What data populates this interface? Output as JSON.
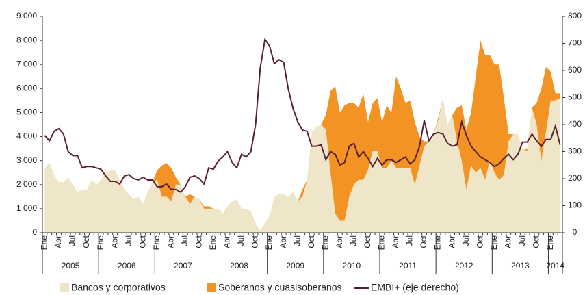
{
  "chart_data": {
    "type": "area",
    "categories": [
      "Ene",
      null,
      null,
      "Abr",
      null,
      null,
      "Jul",
      null,
      null,
      "Oct",
      null,
      null,
      "Ene",
      null,
      null,
      "Abr",
      null,
      null,
      "Jul",
      null,
      null,
      "Oct",
      null,
      null,
      "Ene",
      null,
      null,
      "Abr",
      null,
      null,
      "Jul",
      null,
      null,
      "Oct",
      null,
      null,
      "Ene",
      null,
      null,
      "Abr",
      null,
      null,
      "Jul",
      null,
      null,
      "Oct",
      null,
      null,
      "Ene",
      null,
      null,
      "Abr",
      null,
      null,
      "Jul",
      null,
      null,
      "Oct",
      null,
      null,
      "Ene",
      null,
      null,
      "Abr",
      null,
      null,
      "Jul",
      null,
      null,
      "Oct",
      null,
      null,
      "Ene",
      null,
      null,
      "Abr",
      null,
      null,
      "Jul",
      null,
      null,
      "Oct",
      null,
      null,
      "Ene",
      null,
      null,
      "Abr",
      null,
      null,
      "Jul",
      null,
      null,
      "Oct",
      null,
      null,
      "Ene",
      null,
      null,
      "Abr",
      null,
      null,
      "Jul",
      null,
      null,
      "Oct",
      null,
      null,
      "Ene",
      null,
      null
    ],
    "years": [
      "2005",
      "2006",
      "2007",
      "2008",
      "2009",
      "2010",
      "2011",
      "2012",
      "2013",
      "2014"
    ],
    "series": [
      {
        "name": "Bancos y corporativos",
        "color": "#efe6c9",
        "stacked": true,
        "values": [
          2700,
          2900,
          2400,
          2100,
          2100,
          2300,
          2000,
          1700,
          1800,
          1800,
          2200,
          2000,
          2200,
          2500,
          2600,
          2600,
          2200,
          1800,
          1600,
          1400,
          1500,
          1200,
          1700,
          2100,
          2200,
          1500,
          1500,
          1300,
          2000,
          2000,
          1500,
          1200,
          1500,
          1400,
          1000,
          1000,
          1000,
          1000,
          800,
          1100,
          1300,
          1400,
          1000,
          1000,
          900,
          400,
          100,
          400,
          700,
          1500,
          1600,
          1600,
          1500,
          1700,
          1300,
          1500,
          2200,
          4200,
          4400,
          4500,
          4300,
          2500,
          800,
          500,
          500,
          1500,
          2000,
          2200,
          2200,
          2600,
          3400,
          3400,
          2700,
          2700,
          3000,
          2700,
          2700,
          2700,
          2700,
          2000,
          2800,
          3600,
          3800,
          4100,
          4700,
          5600,
          4500,
          4900,
          3800,
          3000,
          1800,
          2800,
          2500,
          2700,
          2200,
          3000,
          2500,
          2200,
          2400,
          3800,
          4100,
          4100,
          3500,
          3400,
          5200,
          4500,
          3000,
          4200,
          5500,
          5500,
          5600
        ]
      },
      {
        "name": "Soberanos y cuasisoberanos",
        "color": "#f39323",
        "stacked": true,
        "values": [
          0,
          0,
          0,
          0,
          0,
          0,
          0,
          0,
          0,
          0,
          0,
          0,
          0,
          0,
          0,
          0,
          0,
          0,
          0,
          0,
          0,
          0,
          0,
          0,
          400,
          1300,
          1400,
          1400,
          300,
          0,
          0,
          400,
          0,
          0,
          100,
          100,
          0,
          0,
          0,
          0,
          0,
          0,
          0,
          0,
          0,
          0,
          0,
          0,
          0,
          0,
          0,
          0,
          0,
          0,
          0,
          300,
          0,
          0,
          0,
          0,
          600,
          3400,
          5300,
          4500,
          4800,
          3900,
          3400,
          3000,
          3600,
          2000,
          2000,
          2200,
          1900,
          2600,
          2000,
          3800,
          3300,
          2700,
          2800,
          2600,
          1200,
          200,
          0,
          0,
          100,
          0,
          0,
          0,
          1400,
          2300,
          2500,
          2200,
          4000,
          5300,
          5200,
          4400,
          4500,
          4800,
          3200,
          300,
          0,
          0,
          0,
          100,
          0,
          900,
          3000,
          2700,
          1200,
          300,
          200
        ]
      },
      {
        "name": "EMBI+ (eje derecho)",
        "color": "#5a1f2e",
        "type": "line",
        "axis": "y2",
        "values": [
          360,
          340,
          375,
          385,
          365,
          300,
          285,
          285,
          240,
          245,
          245,
          240,
          235,
          210,
          190,
          190,
          180,
          210,
          215,
          200,
          195,
          205,
          195,
          195,
          170,
          170,
          180,
          160,
          160,
          150,
          170,
          205,
          210,
          200,
          180,
          240,
          235,
          265,
          280,
          300,
          260,
          240,
          290,
          280,
          300,
          400,
          610,
          715,
          690,
          625,
          640,
          630,
          530,
          460,
          410,
          380,
          375,
          320,
          320,
          325,
          270,
          300,
          290,
          250,
          260,
          320,
          330,
          280,
          300,
          275,
          245,
          275,
          250,
          270,
          270,
          260,
          270,
          280,
          255,
          270,
          320,
          415,
          340,
          365,
          370,
          365,
          330,
          320,
          325,
          410,
          360,
          320,
          300,
          280,
          270,
          260,
          245,
          255,
          275,
          290,
          270,
          290,
          335,
          335,
          365,
          340,
          320,
          345,
          345,
          395,
          325
        ]
      }
    ],
    "ylim": [
      0,
      9000
    ],
    "yticks": [
      0,
      {
        "value": 1000,
        "label": "1 000"
      },
      {
        "value": 2000,
        "label": "2 000"
      },
      {
        "value": 3000,
        "label": "3 000"
      },
      {
        "value": 4000,
        "label": "4 000"
      },
      {
        "value": 5000,
        "label": "5 000"
      },
      {
        "value": 6000,
        "label": "6 000"
      },
      {
        "value": 7000,
        "label": "7 000"
      },
      {
        "value": 8000,
        "label": "8 000"
      },
      {
        "value": 9000,
        "label": "9 000"
      }
    ],
    "y2lim": [
      0,
      800
    ],
    "y2ticks": [
      0,
      100,
      200,
      300,
      400,
      500,
      600,
      700,
      800
    ],
    "grid": false,
    "legend": "bottom"
  }
}
